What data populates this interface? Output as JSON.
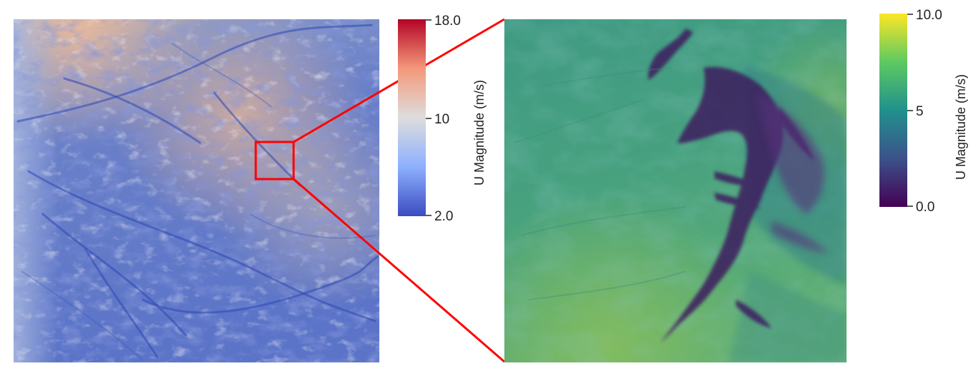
{
  "left_colorbar": {
    "title": "U Magnitude (m/s)",
    "ticks": [
      "18.0",
      "10",
      "2.0"
    ],
    "range": [
      2.0,
      18.0
    ],
    "colors": [
      "#3b4cc0",
      "#dddddd",
      "#b40426"
    ]
  },
  "right_colorbar": {
    "title": "U Magnitude (m/s)",
    "ticks": [
      "10.0",
      "5",
      "0.0"
    ],
    "range": [
      0.0,
      10.0
    ],
    "colors": [
      "#440154",
      "#31688e",
      "#21918c",
      "#5ec962",
      "#fde725"
    ]
  },
  "zoom_highlight_color": "#ff0000"
}
